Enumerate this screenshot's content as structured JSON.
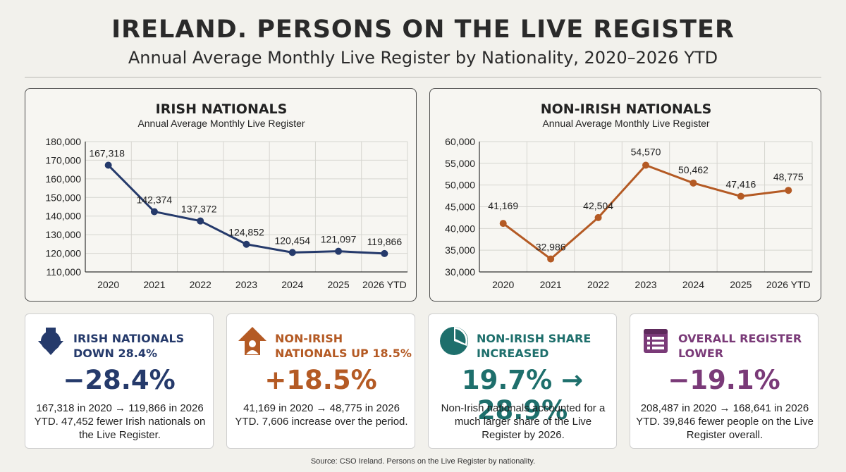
{
  "header": {
    "title": "IRELAND. PERSONS ON THE LIVE REGISTER",
    "subtitle": "Annual Average Monthly Live Register by Nationality, 2020–2026 YTD"
  },
  "colors": {
    "irish": "#253a6b",
    "non_irish": "#b45a24",
    "share": "#1e6f6c",
    "overall": "#7a3a78",
    "grid": "#d6d5d0",
    "axis": "#333333"
  },
  "chart_data": [
    {
      "type": "line",
      "title": "IRISH NATIONALS",
      "subtitle": "Annual Average Monthly Live Register",
      "categories": [
        "2020",
        "2021",
        "2022",
        "2023",
        "2024",
        "2025",
        "2026 YTD"
      ],
      "values": [
        167318,
        142374,
        137372,
        124852,
        120454,
        121097,
        119866
      ],
      "value_labels": [
        "167,318",
        "142,374",
        "137,372",
        "124,852",
        "120,454",
        "121,097",
        "119,866"
      ],
      "ylim": [
        110000,
        180000
      ],
      "yticks": [
        110000,
        120000,
        130000,
        140000,
        150000,
        160000,
        170000,
        180000
      ],
      "ytick_labels": [
        "110,000",
        "120,000",
        "130,000",
        "140,000",
        "150,000",
        "160,000",
        "170,000",
        "180,000"
      ],
      "grid": true,
      "color": "#253a6b"
    },
    {
      "type": "line",
      "title": "NON-IRISH NATIONALS",
      "subtitle": "Annual Average Monthly Live Register",
      "categories": [
        "2020",
        "2021",
        "2022",
        "2023",
        "2024",
        "2025",
        "2026 YTD"
      ],
      "values": [
        41169,
        32986,
        42504,
        54570,
        50462,
        47416,
        48775
      ],
      "value_labels": [
        "41,169",
        "32,986",
        "42,504",
        "54,570",
        "50,462",
        "47,416",
        "48,775"
      ],
      "ylim": [
        30000,
        60000
      ],
      "yticks": [
        30000,
        35000,
        40000,
        45000,
        50000,
        55000,
        60000
      ],
      "ytick_labels": [
        "30,000",
        "35,000",
        "40,000",
        "45,000",
        "50,000",
        "55,000",
        "60,000"
      ],
      "grid": true,
      "color": "#b45a24"
    }
  ],
  "cards": [
    {
      "icon": "down-arrow-icon",
      "heading": "IRISH NATIONALS DOWN 28.4%",
      "big": "−28.4%",
      "text": "167,318 in 2020 → 119,866 in 2026 YTD. 47,452 fewer Irish nationals on the Live Register.",
      "color": "#253a6b"
    },
    {
      "icon": "up-arrow-person-icon",
      "heading": "NON-IRISH NATIONALS UP 18.5%",
      "big": "+18.5%",
      "text": "41,169 in 2020 → 48,775 in 2026 YTD. 7,606 increase over the period.",
      "color": "#b45a24"
    },
    {
      "icon": "pie-chart-icon",
      "heading": "NON-IRISH SHARE INCREASED",
      "big": "19.7% → 28.9%",
      "text": "Non-Irish nationals accounted for a much larger share of the Live Register by 2026.",
      "color": "#1e6f6c"
    },
    {
      "icon": "document-list-icon",
      "heading": "OVERALL REGISTER LOWER",
      "big": "−19.1%",
      "text": "208,487 in 2020 → 168,641 in 2026 YTD. 39,846 fewer people on the Live Register overall.",
      "color": "#7a3a78"
    }
  ],
  "source": "Source: CSO Ireland. Persons on the Live Register by nationality."
}
